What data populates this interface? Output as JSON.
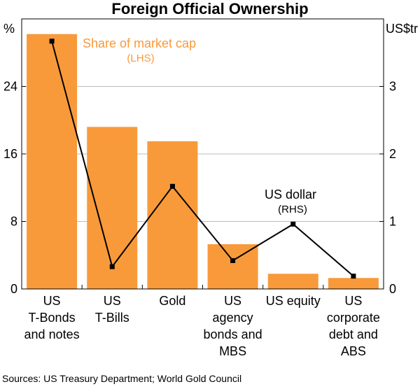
{
  "chart_data": {
    "type": "bar",
    "title": "Foreign Official Ownership",
    "categories": [
      [
        "US",
        "T-Bonds",
        "and notes"
      ],
      [
        "US",
        "T-Bills"
      ],
      [
        "Gold"
      ],
      [
        "US",
        "agency",
        "bonds and",
        "MBS"
      ],
      [
        "US equity"
      ],
      [
        "US",
        "corporate",
        "debt and",
        "ABS"
      ]
    ],
    "left_axis": {
      "label": "%",
      "ylim": [
        0,
        32
      ],
      "ticks": [
        0,
        8,
        16,
        24
      ]
    },
    "right_axis": {
      "label": "US$tr",
      "ylim": [
        0,
        4
      ],
      "ticks": [
        0,
        1,
        2,
        3
      ]
    },
    "series": [
      {
        "name": "Share of market cap",
        "axis_note": "(LHS)",
        "kind": "bar",
        "axis": "left",
        "color": "#f89a3a",
        "values": [
          30.2,
          19.2,
          17.5,
          5.3,
          1.8,
          1.3
        ]
      },
      {
        "name": "US dollar",
        "axis_note": "(RHS)",
        "kind": "line",
        "axis": "right",
        "color": "#000000",
        "values": [
          3.67,
          0.33,
          1.52,
          0.42,
          0.96,
          0.19
        ]
      }
    ],
    "source": "Sources: US Treasury Department; World Gold Council"
  }
}
